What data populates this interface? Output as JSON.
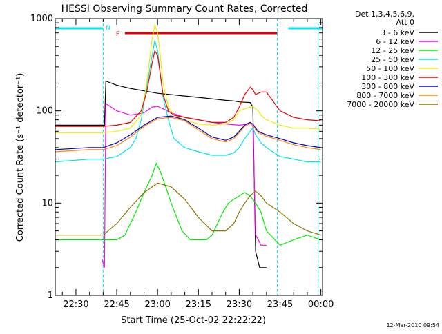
{
  "chart_data": {
    "type": "line",
    "title": "HESSI Observing Summary Count Rates, Corrected",
    "xlabel": "Start Time (25-Oct-02 22:22:22)",
    "ylabel": "Corrected Count Rate (s⁻¹ detector⁻¹)",
    "yscale": "log",
    "ylim": [
      1,
      1000
    ],
    "xlim_minutes": [
      22.4,
      120.6
    ],
    "x_tick_labels": [
      "22:30",
      "22:45",
      "23:00",
      "23:15",
      "23:30",
      "23:45",
      "00:00"
    ],
    "x_tick_minutes": [
      30,
      45,
      60,
      75,
      90,
      105,
      120
    ],
    "y_tick_labels": [
      "1",
      "10",
      "100",
      "1000"
    ],
    "y_tick_values": [
      1,
      10,
      100,
      1000
    ],
    "legend_title": [
      "Det 1,3,4,5,6,9,",
      "Att 0"
    ],
    "legend_position": "right",
    "footer": "12-Mar-2010 09:54",
    "flags": {
      "night_label": "N",
      "flare_label": "F",
      "night_color": "#00e5ee",
      "flare_color": "#e00000",
      "night_intervals": [
        [
          22.4,
          40
        ],
        [
          108,
          120.6
        ]
      ],
      "flare_interval": [
        48,
        104
      ],
      "boundaries": [
        40,
        104,
        119
      ]
    },
    "series": [
      {
        "name": "3 - 6 keV",
        "color": "#000000",
        "x": [
          22.4,
          39.5,
          40.5,
          41,
          45,
          50,
          55,
          60,
          65,
          70,
          75,
          80,
          85,
          88,
          90,
          92,
          94,
          95,
          96,
          97.5,
          98.5,
          100
        ],
        "y": [
          70,
          70,
          70,
          210,
          190,
          175,
          165,
          155,
          150,
          145,
          140,
          135,
          130,
          128,
          125,
          124,
          123,
          110,
          3,
          2,
          2,
          2
        ]
      },
      {
        "name": "6 - 12 keV",
        "color": "#ff00ff",
        "x": [
          39.5,
          40.5,
          41,
          45,
          50,
          55,
          58,
          60,
          62,
          65,
          70,
          75,
          80,
          85,
          90,
          92,
          94,
          95,
          96,
          97,
          98,
          100
        ],
        "y": [
          2.5,
          2,
          120,
          100,
          90,
          95,
          110,
          112,
          105,
          95,
          85,
          80,
          75,
          72,
          70,
          71,
          75,
          70,
          4.5,
          4,
          3.5,
          3.5
        ]
      },
      {
        "name": "12 - 25 keV",
        "color": "#00ee00",
        "x": [
          22.4,
          39.5,
          40.5,
          45,
          48,
          50,
          52,
          54,
          56,
          58,
          59.5,
          61,
          63,
          65,
          67,
          69,
          72,
          75,
          78,
          80,
          82,
          84,
          86,
          88,
          90,
          92,
          94,
          96,
          98,
          100,
          105,
          110,
          115,
          120
        ],
        "y": [
          4,
          4,
          4,
          4,
          4.5,
          6,
          8,
          11,
          15,
          20,
          27,
          22,
          15,
          10,
          7,
          5,
          4,
          4,
          4,
          4.5,
          6,
          8,
          10,
          11,
          12,
          13,
          12,
          10,
          8,
          5,
          3.5,
          4,
          4.5,
          4
        ]
      },
      {
        "name": "25 - 50 keV",
        "color": "#00e5ee",
        "x": [
          22.4,
          35,
          40,
          45,
          50,
          52,
          54,
          56,
          58,
          59,
          60,
          61,
          62,
          64,
          66,
          70,
          75,
          80,
          85,
          88,
          90,
          92,
          94,
          95,
          96,
          97,
          98,
          100,
          105,
          110,
          115,
          120
        ],
        "y": [
          28,
          30,
          30,
          32,
          40,
          50,
          80,
          180,
          400,
          580,
          450,
          250,
          140,
          80,
          50,
          40,
          36,
          33,
          33,
          35,
          40,
          50,
          60,
          65,
          55,
          50,
          45,
          40,
          32,
          30,
          28,
          28
        ]
      },
      {
        "name": "50 - 100 keV",
        "color": "#eeee00",
        "x": [
          22.4,
          40,
          45,
          50,
          54,
          56,
          58,
          59,
          60,
          61,
          62,
          64,
          66,
          70,
          75,
          80,
          85,
          88,
          90,
          92,
          94,
          95,
          96,
          97,
          98,
          100,
          105,
          110,
          115,
          120
        ],
        "y": [
          58,
          58,
          60,
          65,
          90,
          200,
          600,
          850,
          700,
          400,
          200,
          110,
          90,
          80,
          72,
          70,
          72,
          80,
          100,
          105,
          110,
          112,
          105,
          100,
          90,
          80,
          70,
          65,
          65,
          63
        ]
      },
      {
        "name": "100 - 300 keV",
        "color": "#ee0000",
        "x": [
          22.4,
          40,
          45,
          50,
          54,
          56,
          58,
          59,
          60,
          61,
          62,
          64,
          66,
          70,
          75,
          80,
          85,
          88,
          90,
          92,
          94,
          95,
          96,
          97,
          98,
          100,
          105,
          110,
          115,
          120
        ],
        "y": [
          68,
          68,
          70,
          75,
          100,
          160,
          330,
          450,
          400,
          250,
          150,
          100,
          90,
          85,
          80,
          75,
          75,
          85,
          110,
          150,
          180,
          170,
          150,
          155,
          160,
          160,
          100,
          85,
          80,
          78
        ]
      },
      {
        "name": "300 - 800 keV",
        "color": "#0000cc",
        "x": [
          22.4,
          35,
          40,
          45,
          50,
          55,
          60,
          65,
          70,
          75,
          80,
          85,
          88,
          90,
          92,
          94,
          95,
          96,
          97,
          98,
          100,
          105,
          110,
          115,
          120
        ],
        "y": [
          38,
          40,
          40,
          45,
          55,
          70,
          85,
          88,
          80,
          65,
          52,
          48,
          52,
          60,
          70,
          75,
          72,
          65,
          60,
          58,
          55,
          50,
          45,
          42,
          40
        ]
      },
      {
        "name": "800 - 7000 keV",
        "color": "#ff8800",
        "x": [
          22.4,
          35,
          40,
          45,
          50,
          55,
          60,
          65,
          70,
          75,
          80,
          85,
          88,
          90,
          92,
          94,
          95,
          96,
          97,
          98,
          100,
          105,
          110,
          115,
          120
        ],
        "y": [
          36,
          38,
          38,
          42,
          52,
          68,
          82,
          85,
          78,
          62,
          50,
          46,
          50,
          58,
          68,
          73,
          70,
          63,
          58,
          56,
          53,
          48,
          43,
          40,
          38
        ]
      },
      {
        "name": "7000 - 20000 keV",
        "color": "#8b7500",
        "x": [
          22.4,
          35,
          40,
          45,
          50,
          55,
          60,
          65,
          70,
          75,
          80,
          85,
          88,
          90,
          92,
          94,
          96,
          98,
          100,
          105,
          110,
          115,
          120
        ],
        "y": [
          4.5,
          4.5,
          4.5,
          6,
          9,
          13,
          16.5,
          15,
          11,
          7,
          5,
          5,
          6,
          8,
          10,
          12,
          13.5,
          12,
          10,
          8,
          6,
          5,
          4.5
        ]
      }
    ]
  }
}
